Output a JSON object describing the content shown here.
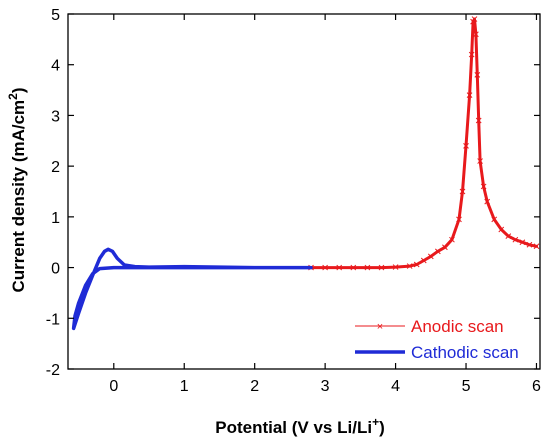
{
  "chart_data": {
    "type": "line",
    "xlabel": "Potential (V vs Li/Li",
    "xlabel_sup": "+",
    "xlabel_end": ")",
    "ylabel": "Current density (mA/cm",
    "ylabel_sup": "2",
    "ylabel_end": ")",
    "xlim": [
      -0.65,
      6.05
    ],
    "ylim": [
      -2,
      5
    ],
    "xticks": [
      0,
      1,
      2,
      3,
      4,
      5,
      6
    ],
    "yticks": [
      -2,
      -1,
      0,
      1,
      2,
      3,
      4,
      5
    ],
    "xtick_labels": [
      "0",
      "1",
      "2",
      "3",
      "4",
      "5",
      "6"
    ],
    "ytick_labels": [
      "-2",
      "-1",
      "0",
      "1",
      "2",
      "3",
      "4",
      "5"
    ],
    "legend_position": "bottom-right",
    "series": [
      {
        "name": "Anodic scan",
        "color": "#e8191c",
        "marker": "x",
        "points": [
          [
            2.8,
            0.0
          ],
          [
            3.0,
            0.0
          ],
          [
            3.2,
            0.0
          ],
          [
            3.4,
            0.0
          ],
          [
            3.6,
            0.0
          ],
          [
            3.8,
            0.0
          ],
          [
            4.0,
            0.01
          ],
          [
            4.2,
            0.03
          ],
          [
            4.3,
            0.06
          ],
          [
            4.4,
            0.14
          ],
          [
            4.5,
            0.22
          ],
          [
            4.6,
            0.32
          ],
          [
            4.7,
            0.4
          ],
          [
            4.8,
            0.55
          ],
          [
            4.9,
            0.95
          ],
          [
            4.95,
            1.5
          ],
          [
            5.0,
            2.4
          ],
          [
            5.05,
            3.4
          ],
          [
            5.08,
            4.2
          ],
          [
            5.1,
            4.85
          ],
          [
            5.12,
            4.9
          ],
          [
            5.14,
            4.6
          ],
          [
            5.16,
            3.8
          ],
          [
            5.18,
            2.9
          ],
          [
            5.2,
            2.1
          ],
          [
            5.25,
            1.6
          ],
          [
            5.3,
            1.3
          ],
          [
            5.4,
            0.95
          ],
          [
            5.5,
            0.75
          ],
          [
            5.6,
            0.62
          ],
          [
            5.7,
            0.55
          ],
          [
            5.8,
            0.5
          ],
          [
            5.9,
            0.45
          ],
          [
            6.0,
            0.42
          ]
        ]
      },
      {
        "name": "Cathodic scan",
        "color": "#1f2bd6",
        "marker": "none",
        "points": [
          [
            2.8,
            0.0
          ],
          [
            2.0,
            0.0
          ],
          [
            1.5,
            0.01
          ],
          [
            1.0,
            0.02
          ],
          [
            0.5,
            0.01
          ],
          [
            0.3,
            0.02
          ],
          [
            0.15,
            0.05
          ],
          [
            0.05,
            0.18
          ],
          [
            -0.02,
            0.32
          ],
          [
            -0.08,
            0.36
          ],
          [
            -0.13,
            0.32
          ],
          [
            -0.2,
            0.18
          ],
          [
            -0.3,
            -0.15
          ],
          [
            -0.4,
            -0.5
          ],
          [
            -0.5,
            -0.9
          ],
          [
            -0.57,
            -1.2
          ],
          [
            -0.55,
            -0.95
          ],
          [
            -0.5,
            -0.7
          ],
          [
            -0.4,
            -0.35
          ],
          [
            -0.3,
            -0.12
          ],
          [
            -0.2,
            -0.02
          ],
          [
            0.0,
            0.0
          ],
          [
            0.5,
            0.0
          ],
          [
            1.0,
            0.0
          ],
          [
            1.5,
            0.0
          ],
          [
            2.0,
            0.0
          ],
          [
            2.8,
            0.0
          ]
        ]
      }
    ]
  }
}
